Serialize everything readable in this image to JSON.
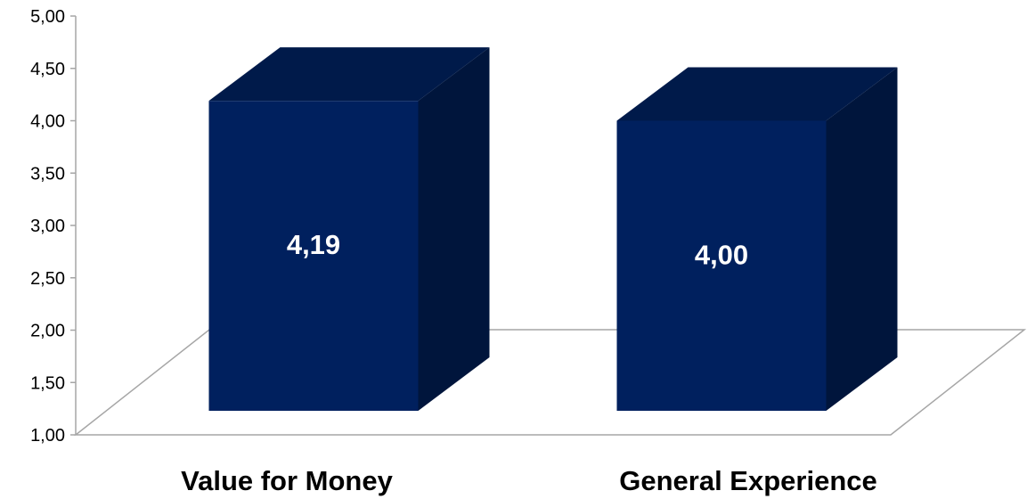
{
  "chart_data": {
    "type": "bar",
    "three_d": true,
    "categories": [
      "Value for Money",
      "General Experience"
    ],
    "values": [
      4.19,
      4.0
    ],
    "data_labels": [
      "4,19",
      "4,00"
    ],
    "y_ticks": [
      "1,00",
      "1,50",
      "2,00",
      "2,50",
      "3,00",
      "3,50",
      "4,00",
      "4,50",
      "5,00"
    ],
    "ylim": [
      1,
      5
    ],
    "title": "",
    "xlabel": "",
    "ylabel": "",
    "grid": false,
    "legend": "none",
    "colors": {
      "bar_front": "#00205e",
      "bar_top": "#001a4a",
      "bar_side": "#00153c",
      "floor_line": "#a6a6a6",
      "axis_line": "#a6a6a6"
    }
  }
}
